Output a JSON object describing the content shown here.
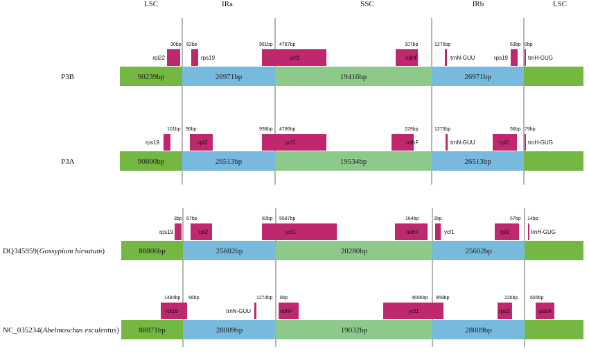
{
  "regions": [
    "LSC",
    "IRa",
    "SSC",
    "IRb",
    "LSC"
  ],
  "colors": {
    "LSC": "#74b843",
    "IR": "#78b9de",
    "SSC": "#8ec98c",
    "gene": "#c0286e"
  },
  "rows": [
    {
      "label_prefix": "P3B",
      "label_italic": "",
      "label_suffix": "",
      "segments": [
        "90239bp",
        "26971bp",
        "19416bp",
        "26971bp"
      ],
      "genes": [
        {
          "name": "rpl22",
          "bp": "30bp"
        },
        {
          "name": "rps19",
          "bp": "62bp"
        },
        {
          "name": "ycf1",
          "bp": "961bp"
        },
        {
          "name": "",
          "bp": "4787bp"
        },
        {
          "name": "ndhF",
          "bp": "107bp"
        },
        {
          "name": "trnN-GUU",
          "bp": "1276bp"
        },
        {
          "name": "rps19",
          "bp": "63bp"
        },
        {
          "name": "trnH-GUG",
          "bp": "0bp"
        }
      ]
    },
    {
      "label_prefix": "P3A",
      "label_italic": "",
      "label_suffix": "",
      "segments": [
        "90800bp",
        "26513bp",
        "19534bp",
        "26513bp"
      ],
      "genes": [
        {
          "name": "rps19",
          "bp": "101bp"
        },
        {
          "name": "rpl2",
          "bp": "56bp"
        },
        {
          "name": "ycf1",
          "bp": "958bp"
        },
        {
          "name": "",
          "bp": "4786bp"
        },
        {
          "name": "ndhF",
          "bp": "229bp"
        },
        {
          "name": "trnN-GUU",
          "bp": "1273bp"
        },
        {
          "name": "rpl2",
          "bp": "56bp"
        },
        {
          "name": "trnH-GUG",
          "bp": "79bp"
        }
      ]
    },
    {
      "label_prefix": "DQ345959(",
      "label_italic": "Gossypium hirsutum",
      "label_suffix": ")",
      "segments": [
        "88806bp",
        "25602bp",
        "20280bp",
        "25602bp"
      ],
      "genes": [
        {
          "name": "rps19",
          "bp": "3bp"
        },
        {
          "name": "rpl2",
          "bp": "57bp"
        },
        {
          "name": "ycf1",
          "bp": "82bp"
        },
        {
          "name": "",
          "bp": "5597bp"
        },
        {
          "name": "ndhF",
          "bp": "164bp"
        },
        {
          "name": "ycf1",
          "bp": "2bp"
        },
        {
          "name": "rpl2",
          "bp": "57bp"
        },
        {
          "name": "trnH-GUG",
          "bp": "14bp"
        }
      ]
    },
    {
      "label_prefix": "NC_035234(",
      "label_italic": "Abelmoschus esculentus",
      "label_suffix": ")",
      "segments": [
        "88071bp",
        "28009bp",
        "19032bp",
        "28009bp"
      ],
      "genes": [
        {
          "name": "rpl16",
          "bp": "1484bp"
        },
        {
          "name": "",
          "bp": "66bp"
        },
        {
          "name": "trnN-GUU",
          "bp": "1274bp"
        },
        {
          "name": "ndhF",
          "bp": "8bp"
        },
        {
          "name": "ycf1",
          "bp": "4696bp"
        },
        {
          "name": "",
          "bp": "959bp"
        },
        {
          "name": "rps3",
          "bp": "226bp"
        },
        {
          "name": "psbA",
          "bp": "655bp"
        }
      ]
    }
  ]
}
